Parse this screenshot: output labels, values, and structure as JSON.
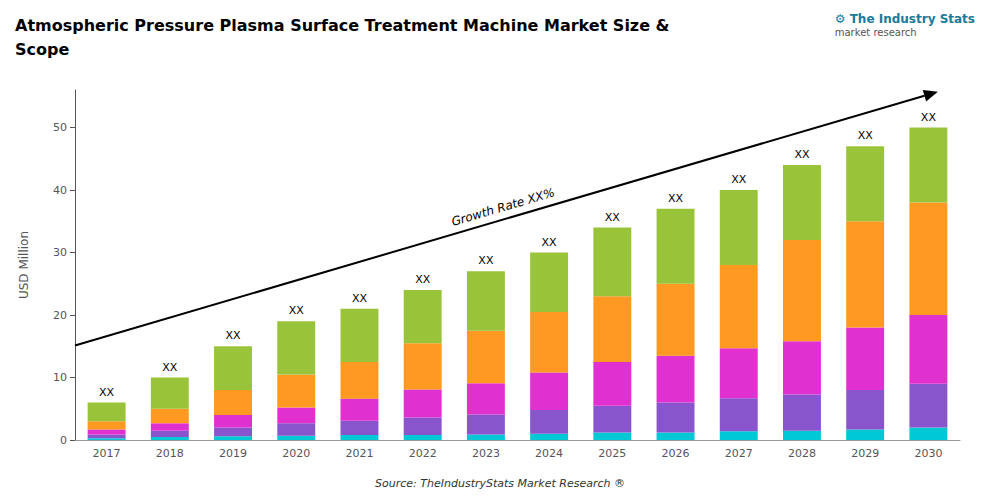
{
  "chart_data": {
    "type": "bar",
    "title": "Atmospheric Pressure Plasma Surface Treatment Machine Market Size &\nScope",
    "ylabel": "USD Million",
    "source": "Source: TheIndustryStats Market Research ®",
    "notes": [
      "⚙ The Industry Stats",
      "market research"
    ],
    "annotation": "Growth Rate XX%",
    "bar_labels": [
      "XX",
      "XX",
      "XX",
      "XX",
      "XX",
      "XX",
      "XX",
      "XX",
      "XX",
      "XX",
      "XX",
      "XX",
      "XX",
      "XX"
    ],
    "categories": [
      "2017",
      "2018",
      "2019",
      "2020",
      "2021",
      "2022",
      "2023",
      "2024",
      "2025",
      "2026",
      "2027",
      "2028",
      "2029",
      "2030"
    ],
    "series": [
      {
        "color": "#00c8d4",
        "values": [
          0.3,
          0.5,
          0.6,
          0.7,
          0.8,
          0.8,
          0.9,
          1.0,
          1.2,
          1.2,
          1.4,
          1.5,
          1.7,
          2.0
        ]
      },
      {
        "color": "#8855cc",
        "values": [
          0.6,
          1.0,
          1.4,
          2.0,
          2.3,
          2.8,
          3.2,
          3.8,
          4.3,
          4.8,
          5.3,
          5.8,
          6.3,
          7.0
        ]
      },
      {
        "color": "#e030d0",
        "values": [
          0.8,
          1.2,
          2.0,
          2.5,
          3.5,
          4.5,
          5.0,
          6.0,
          7.0,
          7.5,
          8.0,
          8.5,
          10.0,
          11.0
        ]
      },
      {
        "color": "#ff9922",
        "values": [
          1.3,
          2.3,
          4.0,
          5.3,
          5.9,
          7.4,
          8.4,
          9.7,
          10.5,
          11.5,
          13.3,
          16.2,
          17.0,
          18.0
        ]
      },
      {
        "color": "#99c43a",
        "values": [
          3.0,
          5.0,
          7.0,
          8.5,
          8.5,
          8.5,
          9.5,
          9.5,
          11.0,
          12.0,
          12.0,
          12.0,
          12.0,
          12.0
        ]
      }
    ],
    "stacked": true,
    "ylim": [
      0,
      56
    ],
    "yticks": [
      0,
      10,
      20,
      30,
      40,
      50
    ],
    "grid": false
  }
}
